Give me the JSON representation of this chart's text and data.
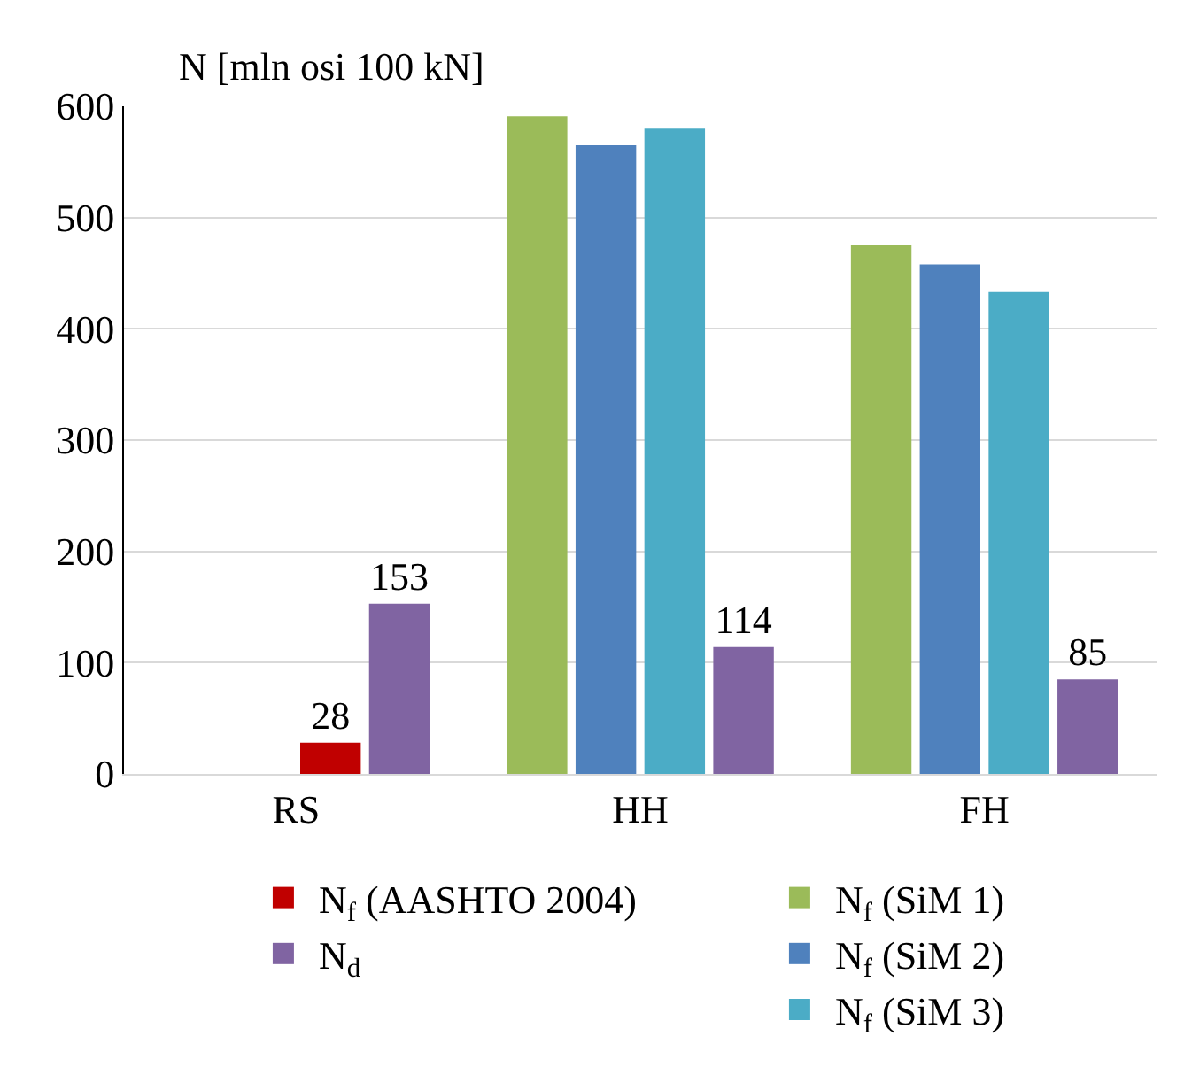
{
  "chart_data": {
    "type": "bar",
    "ylabel": "N [mln osi 100 kN]",
    "categories": [
      "RS",
      "HH",
      "FH"
    ],
    "series": [
      {
        "name": "N$_{f}$ (SiM 1)",
        "color": "#9bbb59",
        "values": [
          null,
          591,
          475
        ]
      },
      {
        "name": "N$_{f}$ (SiM 2)",
        "color": "#4f81bd",
        "values": [
          null,
          565,
          458
        ]
      },
      {
        "name": "N$_{f}$ (SiM 3)",
        "color": "#4bacc6",
        "values": [
          null,
          580,
          433
        ]
      },
      {
        "name": "N$_{f}$ (AASHTO 2004)",
        "color": "#c00000",
        "values": [
          28,
          null,
          null
        ],
        "value_labels": [
          "28",
          null,
          null
        ]
      },
      {
        "name": "N$_{d}$",
        "color": "#8064a2",
        "values": [
          153,
          114,
          85
        ],
        "value_labels": [
          "153",
          "114",
          "85"
        ]
      }
    ],
    "ylim": [
      0,
      600
    ],
    "yticks": [
      0,
      100,
      200,
      300,
      400,
      500,
      600
    ],
    "grid": "y",
    "legend": "bottom"
  }
}
